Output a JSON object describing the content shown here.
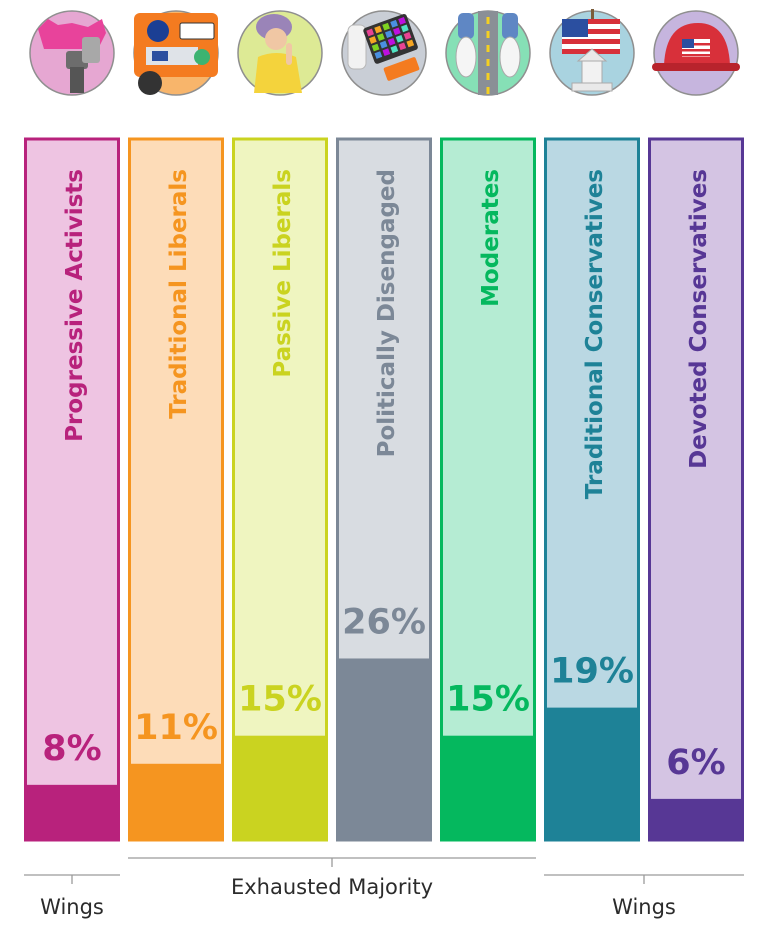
{
  "chart_data": {
    "type": "bar",
    "categories": [
      "Progressive Activists",
      "Traditional Liberals",
      "Passive Liberals",
      "Politically Disengaged",
      "Moderates",
      "Traditional Conservatives",
      "Devoted Conservatives"
    ],
    "values": [
      8,
      11,
      15,
      26,
      15,
      19,
      6
    ],
    "value_labels": [
      "8%",
      "11%",
      "15%",
      "26%",
      "15%",
      "19%",
      "6%"
    ],
    "ylim": [
      0,
      100
    ],
    "colors": {
      "dark": [
        "#b8227c",
        "#f59520",
        "#cad320",
        "#7c8897",
        "#05b85e",
        "#1e8297",
        "#573795"
      ],
      "light": [
        "#eec4e2",
        "#fddcb8",
        "#eff5c0",
        "#d8dce1",
        "#b5ecd3",
        "#bad8e3",
        "#d4c4e3"
      ]
    },
    "icons": [
      "pink-hat-fist-icon",
      "car-bumper-stickers-icon",
      "person-thinking-icon",
      "baby-bottle-tablet-icon",
      "sneakers-on-road-icon",
      "flag-church-icon",
      "red-cap-flag-icon"
    ],
    "groups": [
      {
        "label": "Wings",
        "from": 0,
        "to": 0
      },
      {
        "label": "Exhausted Majority",
        "from": 1,
        "to": 4
      },
      {
        "label": "Wings",
        "from": 5,
        "to": 6
      }
    ],
    "grid": false,
    "legend": "none"
  }
}
